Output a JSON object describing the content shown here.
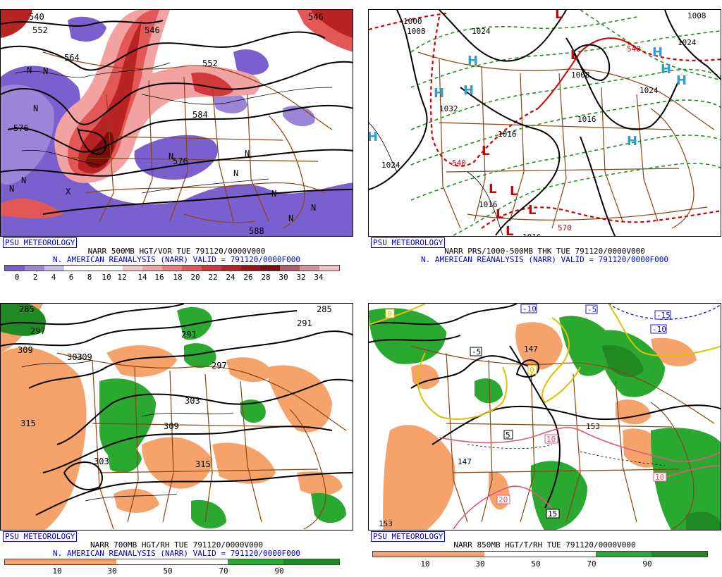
{
  "panels": [
    {
      "badge": "PSU METEOROLOGY",
      "title": "NARR 500MB HGT/VOR TUE 791120/0000V000",
      "subtitle": "N. AMERICAN REANALYSIS (NARR) VALID = 791120/0000F000",
      "scale_labels": [
        "0",
        "2",
        "4",
        "6",
        "8",
        "10",
        "12",
        "14",
        "16",
        "18",
        "20",
        "22",
        "24",
        "26",
        "28",
        "30",
        "32",
        "34"
      ],
      "colors": [
        "#7a5fcf",
        "#9a85d9",
        "#c7bdea",
        "#ffffff",
        "#ffffff",
        "#ffffff",
        "#ffffff",
        "#f6c5c5",
        "#f3a2a2",
        "#ed7d7d",
        "#e45757",
        "#d23a3a",
        "#b82424",
        "#9a1515",
        "#7d0c0c",
        "#b05c6a",
        "#d9909c",
        "#f3c0c8"
      ],
      "map_labels": [
        {
          "t": "540"
        },
        {
          "t": "552"
        },
        {
          "t": "546"
        },
        {
          "t": "564"
        },
        {
          "t": "552"
        },
        {
          "t": "546"
        },
        {
          "t": "584"
        },
        {
          "t": "576"
        },
        {
          "t": "576"
        },
        {
          "t": "588"
        },
        {
          "t": "N"
        },
        {
          "t": "N"
        },
        {
          "t": "N"
        },
        {
          "t": "N"
        },
        {
          "t": "N"
        },
        {
          "t": "N"
        },
        {
          "t": "N"
        },
        {
          "t": "X"
        },
        {
          "t": "N"
        },
        {
          "t": "N"
        },
        {
          "t": "N"
        },
        {
          "t": "N"
        }
      ]
    },
    {
      "badge": "PSU METEOROLOGY",
      "title": "NARR PRS/1000-500MB THK TUE 791120/0000V000",
      "subtitle": "N. AMERICAN REANALYSIS (NARR) VALID = 791120/0000F000",
      "map_labels": [
        {
          "t": "1024"
        },
        {
          "t": "1008"
        },
        {
          "t": "1032"
        },
        {
          "t": "1016"
        },
        {
          "t": "1024"
        },
        {
          "t": "1016"
        },
        {
          "t": "1024"
        },
        {
          "t": "1016"
        },
        {
          "t": "1016"
        },
        {
          "t": "1016"
        },
        {
          "t": "540"
        },
        {
          "t": "540"
        },
        {
          "t": "570"
        },
        {
          "t": "1008"
        },
        {
          "t": "1000"
        },
        {
          "t": "1008"
        },
        {
          "t": "1024"
        }
      ],
      "highs": [
        "H",
        "H",
        "H",
        "H",
        "H",
        "H",
        "H",
        "H"
      ],
      "lows": [
        "L",
        "L",
        "L",
        "L",
        "L",
        "L",
        "L",
        "L",
        "L",
        "L"
      ]
    },
    {
      "badge": "PSU METEOROLOGY",
      "title": "NARR 700MB HGT/RH TUE 791120/0000V000",
      "subtitle": "N. AMERICAN REANALYSIS (NARR) VALID = 791120/0000F000",
      "scale_labels": [
        "10",
        "30",
        "50",
        "70",
        "90"
      ],
      "map_labels": [
        {
          "t": "285"
        },
        {
          "t": "297"
        },
        {
          "t": "309"
        },
        {
          "t": "303"
        },
        {
          "t": "309"
        },
        {
          "t": "291"
        },
        {
          "t": "297"
        },
        {
          "t": "303"
        },
        {
          "t": "309"
        },
        {
          "t": "315"
        },
        {
          "t": "315"
        },
        {
          "t": "303"
        },
        {
          "t": "285"
        },
        {
          "t": "291"
        }
      ]
    },
    {
      "badge": "PSU METEOROLOGY",
      "title": "NARR 850MB HGT/T/RH TUE 791120/0000V000",
      "subtitle": "",
      "scale_labels": [
        "10",
        "30",
        "50",
        "70",
        "90"
      ],
      "map_labels": [
        {
          "t": "-10"
        },
        {
          "t": "-5"
        },
        {
          "t": "-15"
        },
        {
          "t": "-10"
        },
        {
          "t": "-5"
        },
        {
          "t": "147"
        },
        {
          "t": "153"
        },
        {
          "t": "147"
        },
        {
          "t": "153"
        },
        {
          "t": "5"
        },
        {
          "t": "10"
        },
        {
          "t": "15"
        },
        {
          "t": "20"
        },
        {
          "t": "10"
        },
        {
          "t": "0"
        },
        {
          "t": "0"
        }
      ]
    }
  ]
}
